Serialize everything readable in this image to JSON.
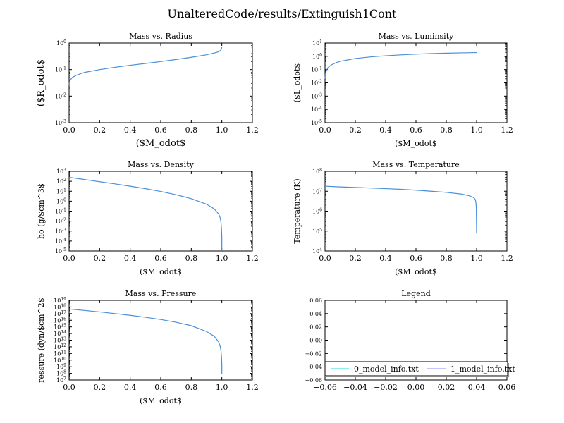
{
  "figure": {
    "suptitle": "UnalteredCode/results/Extinguish1Cont",
    "line_color": "#4a90d9",
    "legend_colors": [
      "#66e8e8",
      "#b0b0ff"
    ]
  },
  "chart_data": [
    {
      "type": "line",
      "title": "Mass vs. Radius",
      "xlabel": "($M_odot$",
      "ylabel": "($R_odot$",
      "xlim": [
        0,
        1.2
      ],
      "xticks": [
        "0.0",
        "0.2",
        "0.4",
        "0.6",
        "0.8",
        "1.0",
        "1.2"
      ],
      "yscale": "log",
      "ylim": [
        0.001,
        1
      ],
      "yticks": [
        "10^-3",
        "10^-2",
        "10^-1",
        "10^0"
      ],
      "series": [
        {
          "x": [
            0.0,
            0.005,
            0.02,
            0.05,
            0.1,
            0.2,
            0.3,
            0.4,
            0.5,
            0.6,
            0.7,
            0.8,
            0.9,
            0.95,
            0.98,
            0.995,
            1.0
          ],
          "y": [
            0.028,
            0.038,
            0.05,
            0.062,
            0.078,
            0.1,
            0.122,
            0.145,
            0.17,
            0.2,
            0.24,
            0.29,
            0.36,
            0.42,
            0.47,
            0.55,
            0.7
          ]
        }
      ]
    },
    {
      "type": "line",
      "title": "Mass vs. Luminsity",
      "xlabel": "($M_odot$",
      "ylabel": "($L_odot$",
      "xlim": [
        0,
        1.2
      ],
      "xticks": [
        "0.0",
        "0.2",
        "0.4",
        "0.6",
        "0.8",
        "1.0",
        "1.2"
      ],
      "yscale": "log",
      "ylim": [
        1e-05,
        10
      ],
      "yticks": [
        "10^-5",
        "10^-4",
        "10^-3",
        "10^-2",
        "10^-1",
        "10^0",
        "10^1"
      ],
      "series": [
        {
          "x": [
            0.0,
            0.003,
            0.01,
            0.02,
            0.04,
            0.07,
            0.1,
            0.2,
            0.3,
            0.4,
            0.5,
            0.6,
            0.7,
            0.8,
            0.9,
            1.0
          ],
          "y": [
            0.02,
            0.05,
            0.09,
            0.14,
            0.22,
            0.32,
            0.42,
            0.68,
            0.9,
            1.1,
            1.28,
            1.45,
            1.6,
            1.72,
            1.82,
            1.9
          ]
        }
      ]
    },
    {
      "type": "line",
      "title": "Mass vs. Density",
      "xlabel": "($M_odot$",
      "ylabel": "ho (g/$cm^3$",
      "xlim": [
        0,
        1.2
      ],
      "xticks": [
        "0.0",
        "0.2",
        "0.4",
        "0.6",
        "0.8",
        "1.0",
        "1.2"
      ],
      "yscale": "log",
      "ylim": [
        1e-05,
        1000
      ],
      "yticks": [
        "10^-5",
        "10^-4",
        "10^-3",
        "10^-2",
        "10^-1",
        "10^0",
        "10^1",
        "10^2",
        "10^3"
      ],
      "series": [
        {
          "x": [
            0.0,
            0.1,
            0.2,
            0.3,
            0.4,
            0.5,
            0.6,
            0.7,
            0.8,
            0.9,
            0.95,
            0.98,
            0.99,
            0.995,
            0.998,
            1.0,
            1.0
          ],
          "y": [
            250,
            150,
            90,
            55,
            32,
            18,
            9.5,
            4.5,
            1.8,
            0.5,
            0.17,
            0.05,
            0.02,
            0.006,
            0.0015,
            0.0002,
            1e-05
          ]
        }
      ]
    },
    {
      "type": "line",
      "title": "Mass vs. Temperature",
      "xlabel": "($M_odot$",
      "ylabel": "Temperature (K)",
      "xlim": [
        0,
        1.2
      ],
      "xticks": [
        "0.0",
        "0.2",
        "0.4",
        "0.6",
        "0.8",
        "1.0",
        "1.2"
      ],
      "yscale": "log",
      "ylim": [
        10000,
        100000000
      ],
      "yticks": [
        "10^4",
        "10^5",
        "10^6",
        "10^7",
        "10^8"
      ],
      "series": [
        {
          "x": [
            0.0,
            0.1,
            0.2,
            0.3,
            0.4,
            0.5,
            0.6,
            0.7,
            0.8,
            0.9,
            0.95,
            0.98,
            0.99,
            0.995,
            0.998,
            1.0
          ],
          "y": [
            18000000,
            16500000,
            15500000,
            14500000,
            13500000,
            12500000,
            11300000,
            10000000,
            8800000,
            7200000,
            6000000,
            4800000,
            4000000,
            3000000,
            1500000,
            75000
          ]
        }
      ]
    },
    {
      "type": "line",
      "title": "Mass vs. Pressure",
      "xlabel": "($M_odot$",
      "ylabel": "ressure (dyn/$cm^2$",
      "xlim": [
        0,
        1.2
      ],
      "xticks": [
        "0.0",
        "0.2",
        "0.4",
        "0.6",
        "0.8",
        "1.0",
        "1.2"
      ],
      "yscale": "log",
      "ylim": [
        10000000,
        10000000000000000000
      ],
      "yticks": [
        "10^7",
        "10^8",
        "10^9",
        "10^10",
        "10^11",
        "10^12",
        "10^13",
        "10^14",
        "10^15",
        "10^16",
        "10^17",
        "10^18",
        "10^19"
      ],
      "series": [
        {
          "x": [
            0.0,
            0.1,
            0.2,
            0.3,
            0.4,
            0.5,
            0.6,
            0.7,
            0.8,
            0.9,
            0.95,
            0.98,
            0.99,
            0.995,
            0.998,
            1.0,
            1.0
          ],
          "y": [
            5e+17,
            3e+17,
            1.8e+17,
            1e+17,
            5.5e+16,
            2.8e+16,
            1.3e+16,
            5000000000000000.0,
            1500000000000000.0,
            200000000000000.0,
            40000000000000.0,
            5000000000000.0,
            1000000000000.0,
            200000000000.0,
            30000000000.0,
            2000000000.0,
            80000000.0
          ]
        }
      ]
    },
    {
      "type": "line",
      "title": "Legend",
      "xlabel": "",
      "ylabel": "",
      "xlim": [
        -0.06,
        0.06
      ],
      "xticks": [
        "−0.06",
        "−0.04",
        "−0.02",
        "0.00",
        "0.02",
        "0.04",
        "0.06"
      ],
      "ylim": [
        -0.06,
        0.06
      ],
      "yticks": [
        "−0.06",
        "−0.04",
        "−0.02",
        "0.00",
        "0.02",
        "0.04",
        "0.06"
      ],
      "legend": {
        "placement": "lower-center",
        "entries": [
          "0_model_info.txt",
          "1_model_info.txt"
        ]
      },
      "series": []
    }
  ]
}
